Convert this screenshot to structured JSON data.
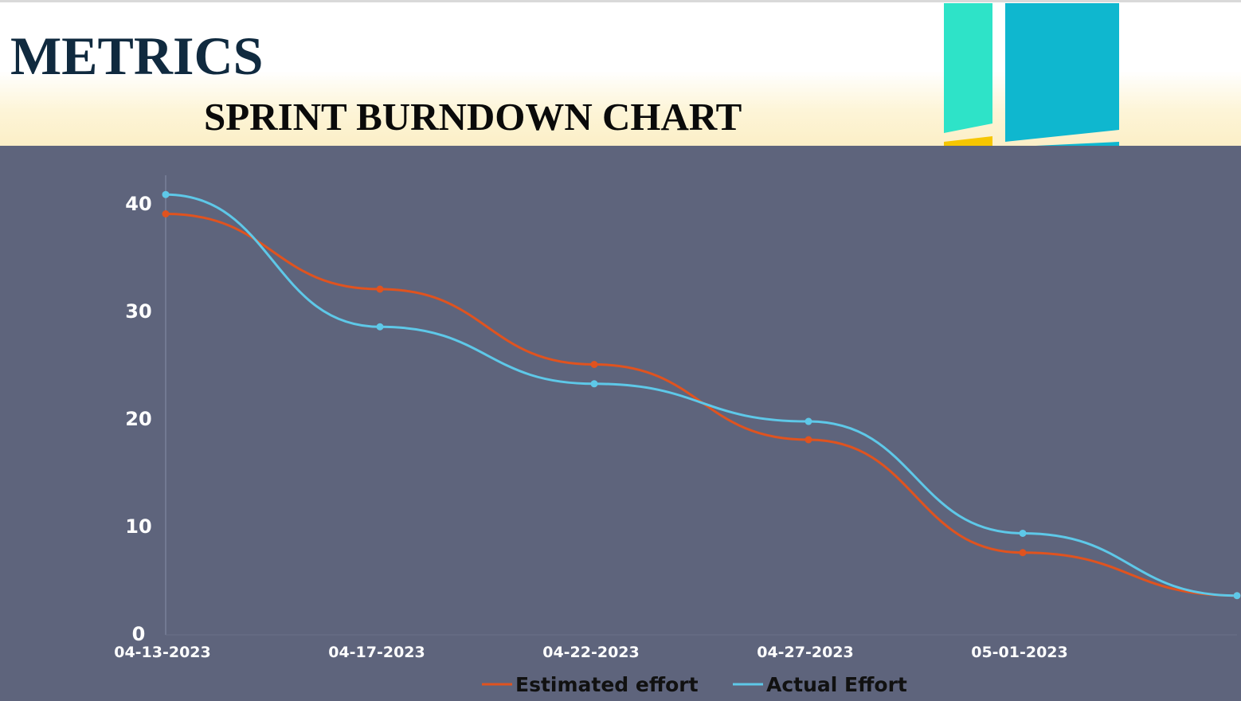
{
  "header": {
    "title": "METRICS",
    "subtitle": "SPRINT BURNDOWN CHART"
  },
  "colors": {
    "estimated": "#e0531f",
    "actual": "#5ec8e8",
    "panel": "#5e647c",
    "decor_teal": "#2ee3c8",
    "decor_blue": "#0fb7cf",
    "decor_yellow": "#f6c600"
  },
  "chart_data": {
    "type": "line",
    "title": "",
    "xlabel": "",
    "ylabel": "",
    "ylim": [
      0,
      42
    ],
    "yticks": [
      0,
      10,
      20,
      30,
      40
    ],
    "x": [
      "04-13-2023",
      "04-17-2023",
      "04-22-2023",
      "04-27-2023",
      "05-01-2023",
      ""
    ],
    "tick_labels": [
      "04-13-2023",
      "04-17-2023",
      "04-22-2023",
      "04-27-2023",
      "05-01-2023"
    ],
    "series": [
      {
        "name": "Estimated effort",
        "color": "#e0531f",
        "values": [
          39,
          32,
          25,
          18,
          7.5,
          3.5
        ]
      },
      {
        "name": "Actual Effort",
        "color": "#5ec8e8",
        "values": [
          40.8,
          28.5,
          23.2,
          19.7,
          9.3,
          3.5
        ]
      }
    ],
    "legend_position": "bottom-center",
    "grid": false,
    "smooth": true
  }
}
